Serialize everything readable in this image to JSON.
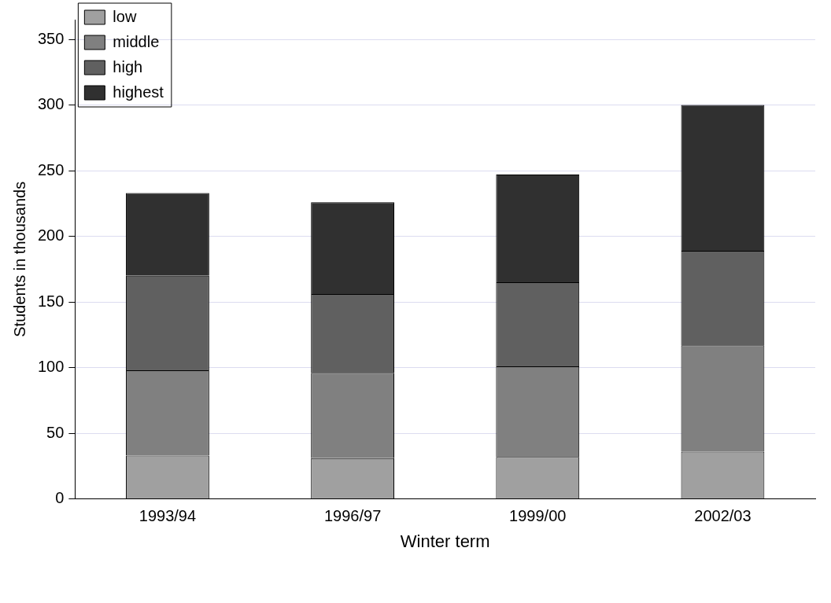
{
  "chart_data": {
    "type": "bar",
    "stacked": true,
    "xlabel": "Winter term",
    "ylabel": "Students in thousands",
    "categories": [
      "1993/94",
      "1996/97",
      "1999/00",
      "2002/03"
    ],
    "series": [
      {
        "name": "low",
        "color": "#a0a0a0",
        "values": [
          33,
          31,
          32,
          36
        ]
      },
      {
        "name": "middle",
        "color": "#808080",
        "values": [
          65,
          65,
          69,
          81
        ]
      },
      {
        "name": "high",
        "color": "#606060",
        "values": [
          72,
          60,
          64,
          72
        ]
      },
      {
        "name": "highest",
        "color": "#303030",
        "values": [
          63,
          70,
          82,
          111
        ]
      }
    ],
    "ylim": [
      0,
      365
    ],
    "yticks": [
      0,
      50,
      100,
      150,
      200,
      250,
      300,
      350
    ],
    "grid": "y",
    "legend": "top left"
  }
}
